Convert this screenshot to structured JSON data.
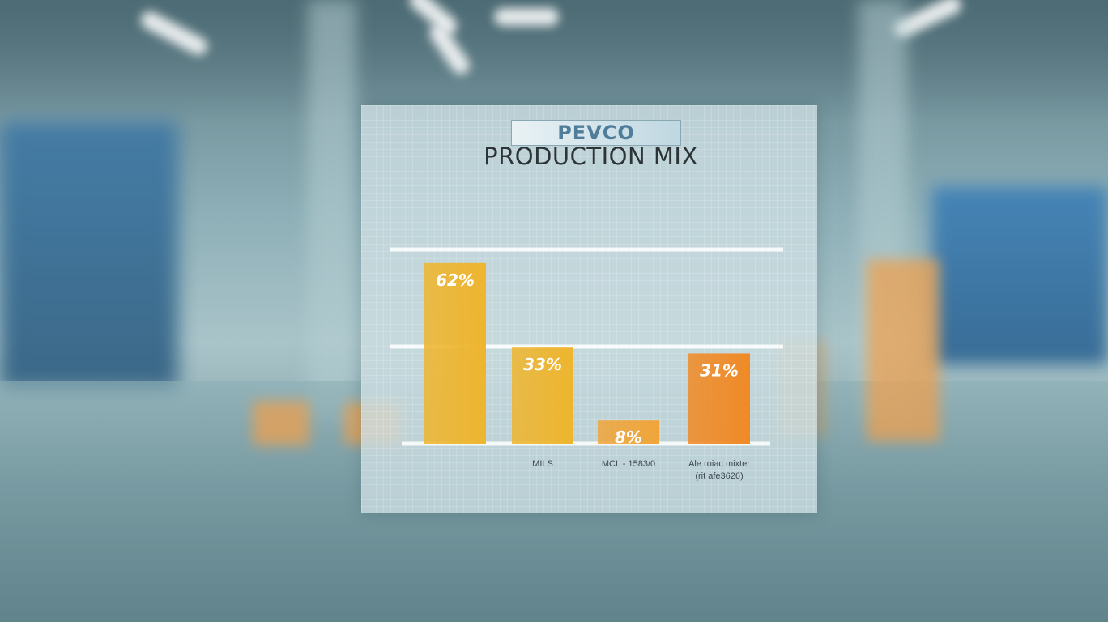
{
  "logo_text": "PEVCO",
  "chart_data": {
    "type": "bar",
    "title": "PRODUCTION MIX",
    "categories": [
      "",
      "MILS",
      "MCL - 1583/0",
      "Ale roiac mixter (rit afe3626)"
    ],
    "category_labels": [
      {
        "lines": [
          ""
        ]
      },
      {
        "lines": [
          "MILS"
        ]
      },
      {
        "lines": [
          "MCL - 1583/0"
        ]
      },
      {
        "lines": [
          "Ale roiac mixter",
          "(rit afe3626)"
        ]
      }
    ],
    "values": [
      62,
      33,
      8,
      31
    ],
    "data_labels": [
      "62%",
      "33%",
      "8%",
      "31%"
    ],
    "bar_colors": [
      "#eeb52e",
      "#eeb52e",
      "#f0a53a",
      "#f08a26"
    ],
    "xlabel": "",
    "ylabel": "",
    "gridlines": "horizontal",
    "legend": "none"
  }
}
